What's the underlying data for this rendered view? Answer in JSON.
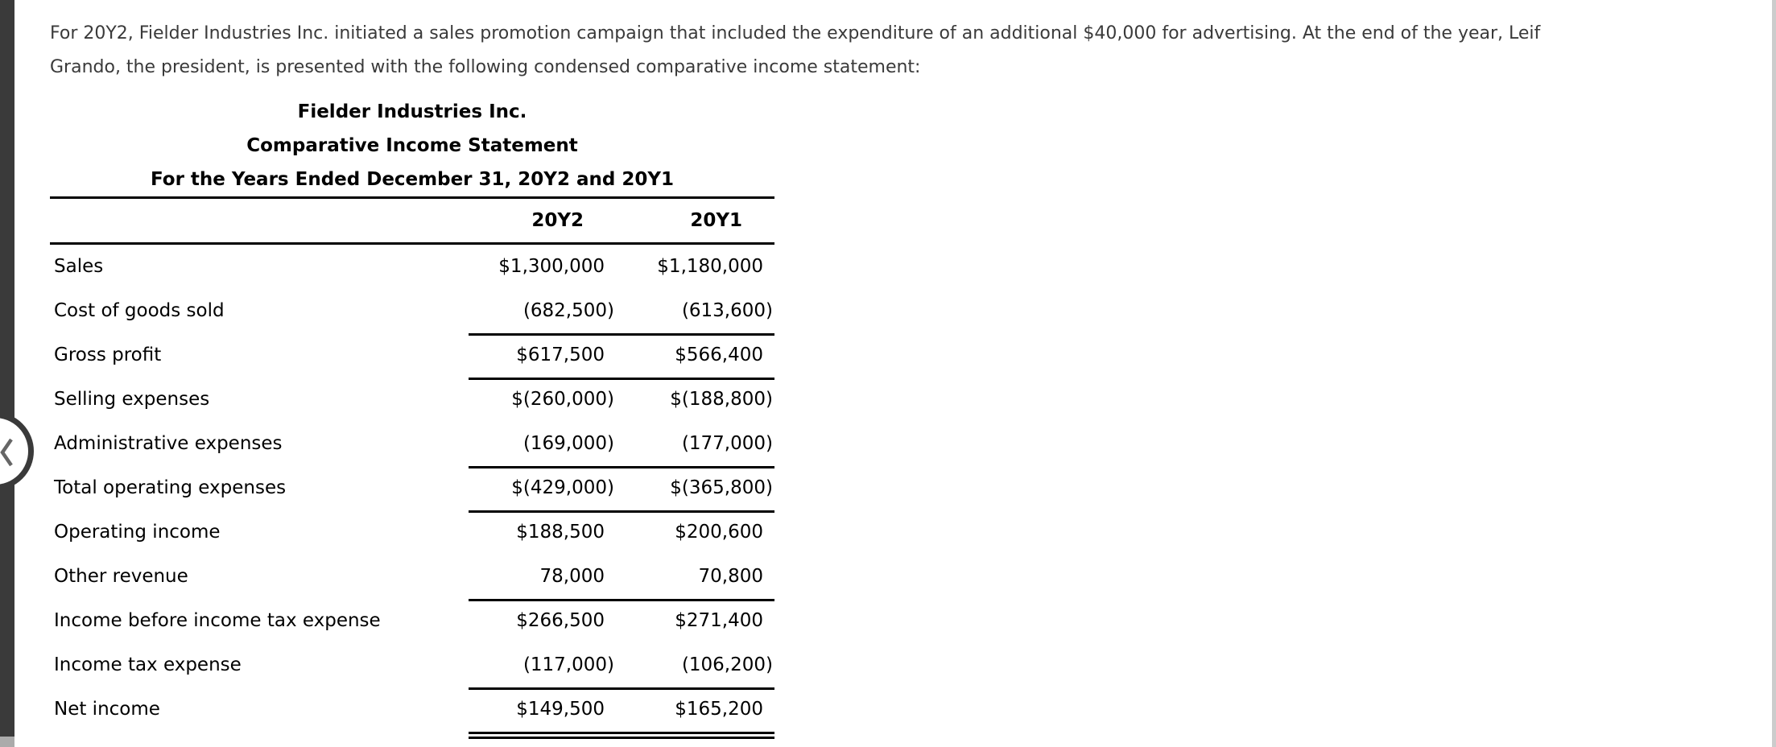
{
  "page": {
    "background": "#ffffff",
    "colors": {
      "panel_bar": "#3a3a3a",
      "scrollbar_track": "#ababab",
      "right_edge_track": "#cccccc",
      "intro_text": "#3a3a3a",
      "table_text": "#000000"
    },
    "icons": {
      "collapse_button": "chevron-left-icon"
    }
  },
  "intro": {
    "lines": [
      "For 20Y2, Fielder Industries Inc. initiated a sales promotion campaign that included the expenditure of an additional $40,000 for advertising. At the end of the year, Leif",
      "Grando, the president, is presented with the following condensed comparative income statement:"
    ]
  },
  "statement": {
    "title": "Fielder Industries Inc.",
    "subtitle": "Comparative Income Statement",
    "period": "For the Years Ended December 31, 20Y2 and 20Y1",
    "columns": [
      "20Y2",
      "20Y1"
    ],
    "rows": [
      {
        "label": "Sales",
        "y2": "$1,300,000",
        "y1": "$1,180,000",
        "rule": "none"
      },
      {
        "label": "Cost of goods sold",
        "y2": "(682,500)",
        "y1": "(613,600)",
        "rule": "single"
      },
      {
        "label": "Gross profit",
        "y2": "$617,500",
        "y1": "$566,400",
        "rule": "single"
      },
      {
        "label": "Selling expenses",
        "y2": "$(260,000)",
        "y1": "$(188,800)",
        "rule": "none"
      },
      {
        "label": "Administrative expenses",
        "y2": "(169,000)",
        "y1": "(177,000)",
        "rule": "single"
      },
      {
        "label": "Total operating expenses",
        "y2": "$(429,000)",
        "y1": "$(365,800)",
        "rule": "single"
      },
      {
        "label": "Operating income",
        "y2": "$188,500",
        "y1": "$200,600",
        "rule": "none"
      },
      {
        "label": "Other revenue",
        "y2": "78,000",
        "y1": "70,800",
        "rule": "single"
      },
      {
        "label": "Income before income tax expense",
        "y2": "$266,500",
        "y1": "$271,400",
        "rule": "none"
      },
      {
        "label": "Income tax expense",
        "y2": "(117,000)",
        "y1": "(106,200)",
        "rule": "single"
      },
      {
        "label": "Net income",
        "y2": "$149,500",
        "y1": "$165,200",
        "rule": "double"
      }
    ]
  }
}
